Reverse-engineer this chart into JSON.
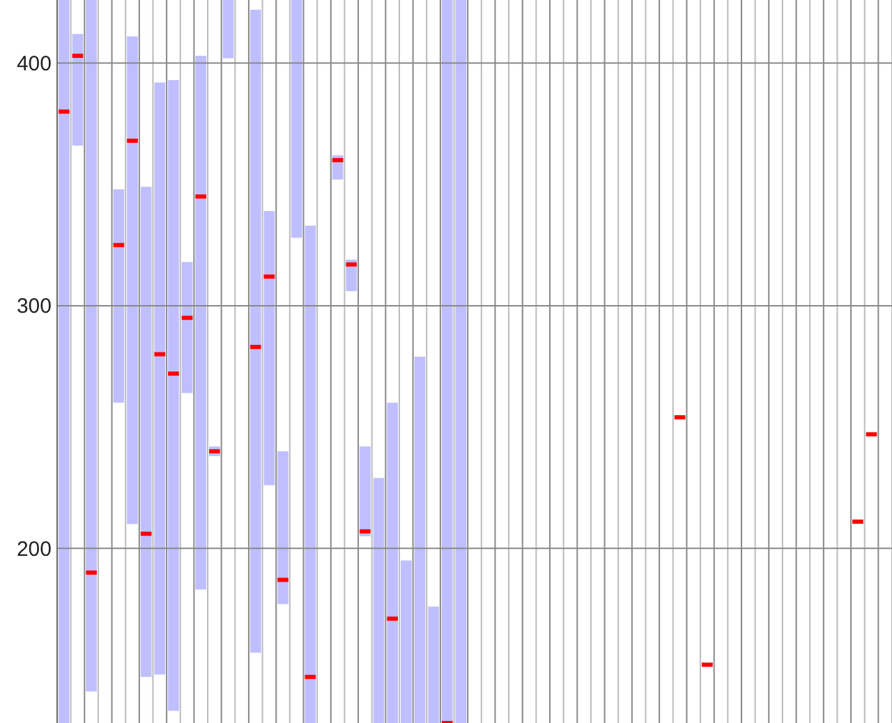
{
  "chart_data": {
    "type": "box",
    "categories": [
      null,
      null,
      null,
      null,
      null,
      null,
      null,
      null,
      null,
      null,
      null,
      null,
      null,
      null,
      null,
      null,
      null,
      null,
      null,
      null,
      null,
      null,
      null,
      null,
      null,
      null,
      null,
      null,
      null,
      null,
      null,
      null,
      null,
      null,
      null,
      null,
      null,
      null,
      null,
      null,
      null,
      null,
      null,
      null,
      null,
      null,
      null,
      null,
      null,
      null,
      null,
      null,
      null,
      null,
      null,
      null,
      null,
      null,
      null,
      null,
      null
    ],
    "series": [
      {
        "color": "#bfbfff",
        "boxes": [
          {
            "low": 128,
            "q1": 128,
            "median": 380,
            "q3": 426,
            "high": 426
          },
          {
            "low": 366,
            "q1": 366,
            "median": 403,
            "q3": 412,
            "high": 412
          },
          {
            "low": 141,
            "q1": 141,
            "median": 190,
            "q3": 426,
            "high": 426
          },
          null,
          {
            "low": 260,
            "q1": 260,
            "median": 325,
            "q3": 348,
            "high": 348
          },
          {
            "low": 210,
            "q1": 210,
            "median": 368,
            "q3": 411,
            "high": 411
          },
          {
            "low": 147,
            "q1": 147,
            "median": 206,
            "q3": 349,
            "high": 349
          },
          {
            "low": 148,
            "q1": 148,
            "median": 280,
            "q3": 392,
            "high": 392
          },
          {
            "low": 133,
            "q1": 133,
            "median": 272,
            "q3": 393,
            "high": 393
          },
          {
            "low": 264,
            "q1": 264,
            "median": 295,
            "q3": 318,
            "high": 318
          },
          {
            "low": 183,
            "q1": 183,
            "median": 345,
            "q3": 403,
            "high": 403
          },
          {
            "low": 238,
            "q1": 238,
            "median": 240,
            "q3": 242,
            "high": 242
          },
          {
            "low": 402,
            "q1": 402,
            "median": null,
            "q3": 426,
            "high": 426
          },
          null,
          {
            "low": 157,
            "q1": 157,
            "median": 283,
            "q3": 422,
            "high": 422
          },
          {
            "low": 226,
            "q1": 226,
            "median": 312,
            "q3": 339,
            "high": 339
          },
          {
            "low": 177,
            "q1": 177,
            "median": 187,
            "q3": 240,
            "high": 240
          },
          {
            "low": 328,
            "q1": 328,
            "median": null,
            "q3": 426,
            "high": 426
          },
          {
            "low": 128,
            "q1": 128,
            "median": 147,
            "q3": 333,
            "high": 333
          },
          null,
          {
            "low": 352,
            "q1": 352,
            "median": 360,
            "q3": 362,
            "high": 362
          },
          {
            "low": 306,
            "q1": 306,
            "median": 317,
            "q3": 319,
            "high": 319
          },
          {
            "low": 205,
            "q1": 205,
            "median": 207,
            "q3": 242,
            "high": 242
          },
          {
            "low": 128,
            "q1": 128,
            "median": null,
            "q3": 229,
            "high": 229
          },
          {
            "low": 128,
            "q1": 128,
            "median": 171,
            "q3": 260,
            "high": 260
          },
          {
            "low": 128,
            "q1": 128,
            "median": null,
            "q3": 195,
            "high": 195
          },
          {
            "low": 128,
            "q1": 128,
            "median": null,
            "q3": 279,
            "high": 279
          },
          {
            "low": 128,
            "q1": 128,
            "median": null,
            "q3": 176,
            "high": 176
          },
          {
            "low": 128,
            "q1": 128,
            "median": 128,
            "q3": 426,
            "high": 426
          },
          {
            "low": 128,
            "q1": 128,
            "median": null,
            "q3": 426,
            "high": 426
          },
          null,
          null,
          null,
          null,
          null,
          null,
          null,
          null,
          null,
          null,
          null,
          null,
          null,
          null,
          null,
          {
            "low": 254,
            "q1": 254,
            "median": 254,
            "q3": 254,
            "high": 254
          },
          null,
          {
            "low": 152,
            "q1": 152,
            "median": 152,
            "q3": 153,
            "high": 153
          },
          null,
          null,
          null,
          null,
          null,
          null,
          null,
          null,
          null,
          null,
          {
            "low": 211,
            "q1": 211,
            "median": 211,
            "q3": 211,
            "high": 211
          },
          {
            "low": 247,
            "q1": 247,
            "median": 247,
            "q3": 247,
            "high": 247
          },
          null
        ]
      }
    ],
    "ylim": [
      128,
      426
    ],
    "yticks": [
      200,
      300,
      400
    ],
    "grid": true
  }
}
